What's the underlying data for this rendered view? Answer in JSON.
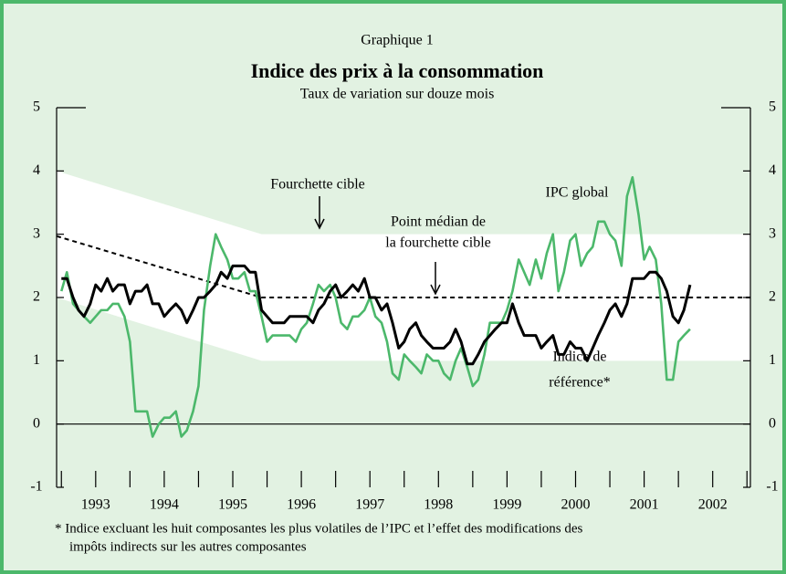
{
  "chart_data": {
    "type": "line",
    "caption": "Graphique 1",
    "title": "Indice des prix à la consommation",
    "subtitle": "Taux de variation sur douze mois",
    "x": [
      1993.0,
      1993.08,
      1993.17,
      1993.25,
      1993.33,
      1993.42,
      1993.5,
      1993.58,
      1993.67,
      1993.75,
      1993.83,
      1993.92,
      1994.0,
      1994.08,
      1994.17,
      1994.25,
      1994.33,
      1994.42,
      1994.5,
      1994.58,
      1994.67,
      1994.75,
      1994.83,
      1994.92,
      1995.0,
      1995.08,
      1995.17,
      1995.25,
      1995.33,
      1995.42,
      1995.5,
      1995.58,
      1995.67,
      1995.75,
      1995.83,
      1995.92,
      1996.0,
      1996.08,
      1996.17,
      1996.25,
      1996.33,
      1996.42,
      1996.5,
      1996.58,
      1996.67,
      1996.75,
      1996.83,
      1996.92,
      1997.0,
      1997.08,
      1997.17,
      1997.25,
      1997.33,
      1997.42,
      1997.5,
      1997.58,
      1997.67,
      1997.75,
      1997.83,
      1997.92,
      1998.0,
      1998.08,
      1998.17,
      1998.25,
      1998.33,
      1998.42,
      1998.5,
      1998.58,
      1998.67,
      1998.75,
      1998.83,
      1998.92,
      1999.0,
      1999.08,
      1999.17,
      1999.25,
      1999.33,
      1999.42,
      1999.5,
      1999.58,
      1999.67,
      1999.75,
      1999.83,
      1999.92,
      2000.0,
      2000.08,
      2000.17,
      2000.25,
      2000.33,
      2000.42,
      2000.5,
      2000.58,
      2000.67,
      2000.75,
      2000.83,
      2000.92,
      2001.0,
      2001.08,
      2001.17,
      2001.25,
      2001.33,
      2001.42,
      2001.5,
      2001.58,
      2001.67,
      2001.75,
      2001.83,
      2001.92,
      2002.0,
      2002.08,
      2002.17
    ],
    "series": [
      {
        "color": "#4cb86b",
        "values": [
          2.1,
          2.4,
          1.9,
          1.8,
          1.7,
          1.6,
          1.7,
          1.8,
          1.8,
          1.9,
          1.9,
          1.7,
          1.3,
          0.2,
          0.2,
          0.2,
          -0.2,
          0.0,
          0.1,
          0.1,
          0.2,
          -0.2,
          -0.1,
          0.2,
          0.6,
          1.8,
          2.5,
          3.0,
          2.8,
          2.6,
          2.3,
          2.3,
          2.4,
          2.1,
          2.1,
          1.7,
          1.3,
          1.4,
          1.4,
          1.4,
          1.4,
          1.3,
          1.5,
          1.6,
          1.9,
          2.2,
          2.1,
          2.2,
          2.0,
          1.6,
          1.5,
          1.7,
          1.7,
          1.8,
          2.0,
          1.7,
          1.6,
          1.3,
          0.8,
          0.7,
          1.1,
          1.0,
          0.9,
          0.8,
          1.1,
          1.0,
          1.0,
          0.8,
          0.7,
          1.0,
          1.2,
          0.9,
          0.6,
          0.7,
          1.1,
          1.6,
          1.6,
          1.6,
          1.8,
          2.1,
          2.6,
          2.4,
          2.2,
          2.6,
          2.3,
          2.7,
          3.0,
          2.1,
          2.4,
          2.9,
          3.0,
          2.5,
          2.7,
          2.8,
          3.2,
          3.2,
          3.0,
          2.9,
          2.5,
          3.6,
          3.9,
          3.3,
          2.6,
          2.8,
          2.6,
          1.9,
          0.7,
          0.7,
          1.3,
          1.4,
          1.5
        ]
      },
      {
        "color": "#000000",
        "values": [
          2.3,
          2.3,
          2.0,
          1.8,
          1.7,
          1.9,
          2.2,
          2.1,
          2.3,
          2.1,
          2.2,
          2.2,
          1.9,
          2.1,
          2.1,
          2.2,
          1.9,
          1.9,
          1.7,
          1.8,
          1.9,
          1.8,
          1.6,
          1.8,
          2.0,
          2.0,
          2.1,
          2.2,
          2.4,
          2.3,
          2.5,
          2.5,
          2.5,
          2.4,
          2.4,
          1.8,
          1.7,
          1.6,
          1.6,
          1.6,
          1.7,
          1.7,
          1.7,
          1.7,
          1.6,
          1.8,
          1.9,
          2.1,
          2.2,
          2.0,
          2.1,
          2.2,
          2.1,
          2.3,
          2.0,
          2.0,
          1.8,
          1.9,
          1.6,
          1.2,
          1.3,
          1.5,
          1.6,
          1.4,
          1.3,
          1.2,
          1.2,
          1.2,
          1.3,
          1.5,
          1.3,
          0.95,
          0.95,
          1.1,
          1.3,
          1.4,
          1.5,
          1.6,
          1.6,
          1.9,
          1.6,
          1.4,
          1.4,
          1.4,
          1.2,
          1.3,
          1.4,
          1.1,
          1.1,
          1.3,
          1.2,
          1.2,
          1.0,
          1.2,
          1.4,
          1.6,
          1.8,
          1.9,
          1.7,
          1.9,
          2.3,
          2.3,
          2.3,
          2.4,
          2.4,
          2.3,
          2.1,
          1.7,
          1.6,
          1.8,
          2.2
        ]
      }
    ],
    "band": {
      "x": [
        1992.93,
        1995.92,
        2003.05
      ],
      "upper": [
        4,
        3,
        3
      ],
      "lower": [
        2,
        1,
        1
      ],
      "color": "#ffffff"
    },
    "midpoint": {
      "x": [
        1992.93,
        1995.92,
        2003.05
      ],
      "values": [
        2.97,
        2,
        2
      ]
    },
    "xlim": [
      1992.93,
      2003.05
    ],
    "xticks": [
      {
        "value": 1993.5,
        "label": "1993"
      },
      {
        "value": 1994.5,
        "label": "1994"
      },
      {
        "value": 1995.5,
        "label": "1995"
      },
      {
        "value": 1996.5,
        "label": "1996"
      },
      {
        "value": 1997.5,
        "label": "1997"
      },
      {
        "value": 1998.5,
        "label": "1998"
      },
      {
        "value": 1999.5,
        "label": "1999"
      },
      {
        "value": 2000.5,
        "label": "2000"
      },
      {
        "value": 2001.5,
        "label": "2001"
      },
      {
        "value": 2002.5,
        "label": "2002"
      }
    ],
    "xminor": [
      1993,
      1994,
      1995,
      1996,
      1997,
      1998,
      1999,
      2000,
      2001,
      2002,
      2003
    ],
    "ylim": [
      -1,
      5
    ],
    "yticks": [
      -1,
      0,
      1,
      2,
      3,
      4,
      5
    ],
    "annotations": {
      "band": "Fourchette cible",
      "midpoint": [
        "Point médian de",
        "la fourchette cible"
      ],
      "total": "IPC global",
      "core": [
        "Indice de",
        "référence*"
      ]
    },
    "footnote": [
      "*  Indice excluant les huit composantes les plus volatiles de l’IPC et l’effet des modifications des",
      "impôts indirects sur les autres composantes"
    ]
  }
}
